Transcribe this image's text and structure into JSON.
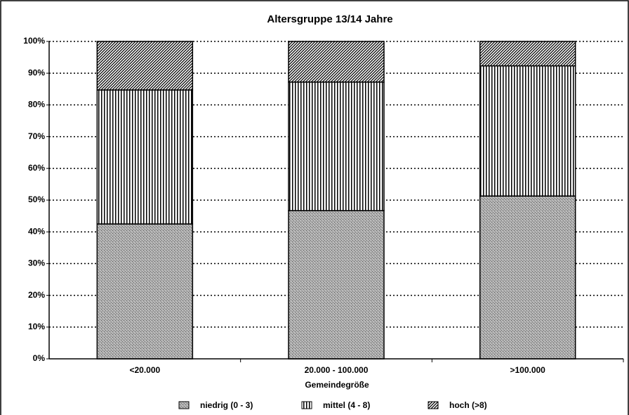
{
  "chart_data": {
    "type": "stacked_bar",
    "title": "Altersgruppe 13/14 Jahre",
    "x_label": "Gemeindegröße",
    "categories": [
      "<20.000",
      "20.000 - 100.000",
      ">100.000"
    ],
    "series": [
      {
        "name": "niedrig (0 - 3)",
        "color": "#9a9a9a",
        "pattern": "dots",
        "values": [
          42.5,
          46.7,
          51.3
        ]
      },
      {
        "name": "mittel (4 - 8)",
        "color": "#000000",
        "pattern": "vertical",
        "values": [
          42.2,
          40.5,
          41.0
        ]
      },
      {
        "name": "hoch (>8)",
        "color": "#000000",
        "pattern": "diagonal",
        "values": [
          15.3,
          12.8,
          7.7
        ]
      }
    ],
    "ylim": [
      0,
      100
    ],
    "yticks": [
      {
        "value": 0,
        "label": "0%"
      },
      {
        "value": 10,
        "label": "10%"
      },
      {
        "value": 20,
        "label": "20%"
      },
      {
        "value": 30,
        "label": "30%"
      },
      {
        "value": 40,
        "label": "40%"
      },
      {
        "value": 50,
        "label": "50%"
      },
      {
        "value": 60,
        "label": "60%"
      },
      {
        "value": 70,
        "label": "70%"
      },
      {
        "value": 80,
        "label": "80%"
      },
      {
        "value": 90,
        "label": "90%"
      },
      {
        "value": 100,
        "label": "100%"
      }
    ],
    "grid": true,
    "legend": "bottom"
  }
}
